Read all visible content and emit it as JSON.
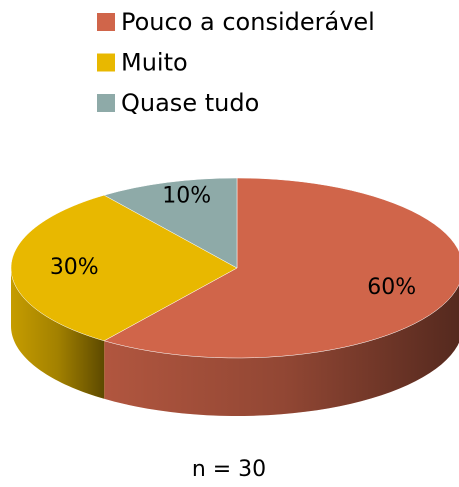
{
  "chart_data": {
    "type": "pie",
    "categories": [
      "Pouco a considerável",
      "Muito",
      "Quase tudo"
    ],
    "values": [
      60,
      30,
      10
    ],
    "value_labels": [
      "60%",
      "30%",
      "10%"
    ],
    "colors": [
      "#d0654a",
      "#e8b800",
      "#8eaaa8"
    ],
    "note": "n  = 30",
    "legend": "top"
  }
}
